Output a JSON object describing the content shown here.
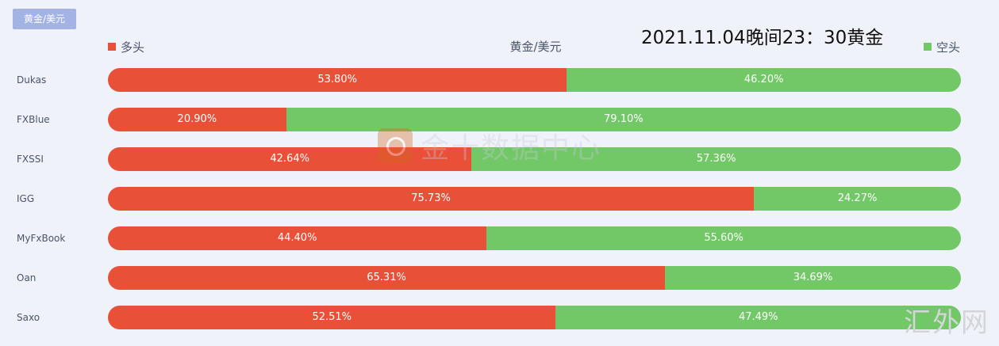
{
  "tag_label": "黄金/美元",
  "overlay_title": "2021.11.04晚间23：30黄金",
  "watermark_center": "金十数据中心",
  "watermark_corner": "汇外网",
  "chart_data": {
    "type": "bar",
    "stacked": true,
    "orientation": "horizontal",
    "title": "黄金/美元",
    "categories": [
      "Dukas",
      "FXBlue",
      "FXSSI",
      "IGG",
      "MyFxBook",
      "Oan",
      "Saxo"
    ],
    "series": [
      {
        "name": "多头",
        "color": "#e85038",
        "values": [
          53.8,
          20.9,
          42.64,
          75.73,
          44.4,
          65.31,
          52.51
        ],
        "labels": [
          "53.80%",
          "20.90%",
          "42.64%",
          "75.73%",
          "44.40%",
          "65.31%",
          "52.51%"
        ]
      },
      {
        "name": "空头",
        "color": "#72c866",
        "values": [
          46.2,
          79.1,
          57.36,
          24.27,
          55.6,
          34.69,
          47.49
        ],
        "labels": [
          "46.20%",
          "79.10%",
          "57.36%",
          "24.27%",
          "55.60%",
          "34.69%",
          "47.49%"
        ]
      }
    ],
    "xlim": [
      0,
      100
    ],
    "legend": "top"
  }
}
